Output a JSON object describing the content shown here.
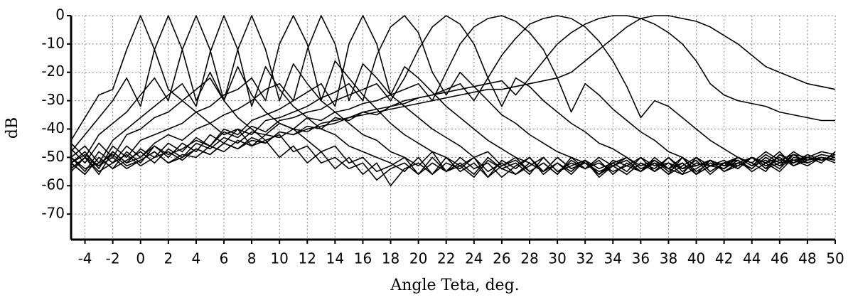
{
  "chart_data": {
    "type": "line",
    "x_label": "Angle Teta, deg.",
    "y_label": "dB",
    "xlim": [
      -5,
      50
    ],
    "ylim": [
      -79,
      0
    ],
    "xticks": [
      -4,
      -2,
      0,
      2,
      4,
      6,
      8,
      10,
      12,
      14,
      16,
      18,
      20,
      22,
      24,
      26,
      28,
      30,
      32,
      34,
      36,
      38,
      40,
      42,
      44,
      46,
      48,
      50
    ],
    "yticks": [
      0,
      -10,
      -20,
      -30,
      -40,
      -50,
      -60,
      -70
    ],
    "grid": true,
    "x": [
      -5,
      -4,
      -3,
      -2,
      -1,
      0,
      1,
      2,
      3,
      4,
      5,
      6,
      7,
      8,
      9,
      10,
      11,
      12,
      13,
      14,
      15,
      16,
      17,
      18,
      19,
      20,
      21,
      22,
      23,
      24,
      25,
      26,
      27,
      28,
      29,
      30,
      31,
      32,
      33,
      34,
      35,
      36,
      37,
      38,
      39,
      40,
      41,
      42,
      43,
      44,
      45,
      46,
      47,
      48,
      49,
      50
    ],
    "series": [
      {
        "color": "#000000",
        "values": [
          -44,
          -36,
          -28,
          -26,
          -12,
          0,
          -12,
          -26,
          -30,
          -34,
          -38,
          -42,
          -40,
          -46,
          -44,
          -50,
          -46,
          -52,
          -48,
          -54,
          -50,
          -56,
          -52,
          -60,
          -54,
          -52,
          -56,
          -50,
          -55,
          -52,
          -57,
          -51,
          -54,
          -50,
          -56,
          -52,
          -55,
          -51,
          -57,
          -53,
          -50,
          -54,
          -52,
          -56,
          -50,
          -55,
          -52,
          -54,
          -50,
          -53,
          -49,
          -52,
          -48,
          -51,
          -49,
          -50
        ]
      },
      {
        "color": "#000000",
        "values": [
          -48,
          -42,
          -36,
          -30,
          -22,
          -32,
          -12,
          0,
          -12,
          -30,
          -20,
          -30,
          -36,
          -40,
          -44,
          -42,
          -48,
          -46,
          -52,
          -50,
          -54,
          -52,
          -58,
          -54,
          -52,
          -56,
          -50,
          -55,
          -53,
          -57,
          -51,
          -54,
          -56,
          -52,
          -55,
          -50,
          -54,
          -52,
          -56,
          -51,
          -53,
          -55,
          -50,
          -54,
          -52,
          -56,
          -51,
          -53,
          -52,
          -50,
          -54,
          -49,
          -51,
          -50,
          -52,
          -48
        ]
      },
      {
        "color": "#000000",
        "values": [
          -45,
          -50,
          -42,
          -38,
          -34,
          -28,
          -22,
          -30,
          -12,
          0,
          -12,
          -30,
          -18,
          -28,
          -34,
          -38,
          -40,
          -44,
          -48,
          -46,
          -52,
          -50,
          -55,
          -53,
          -50,
          -56,
          -52,
          -55,
          -50,
          -54,
          -52,
          -57,
          -53,
          -50,
          -55,
          -52,
          -56,
          -51,
          -54,
          -52,
          -55,
          -50,
          -53,
          -52,
          -56,
          -54,
          -51,
          -53,
          -50,
          -52,
          -55,
          -49,
          -52,
          -50,
          -51,
          -49
        ]
      },
      {
        "color": "#000000",
        "values": [
          -50,
          -46,
          -52,
          -44,
          -40,
          -36,
          -32,
          -28,
          -24,
          -32,
          -13,
          0,
          -12,
          -32,
          -18,
          -26,
          -32,
          -36,
          -40,
          -42,
          -46,
          -48,
          -50,
          -52,
          -55,
          -50,
          -56,
          -52,
          -54,
          -50,
          -57,
          -53,
          -50,
          -55,
          -52,
          -56,
          -51,
          -54,
          -50,
          -53,
          -56,
          -52,
          -54,
          -50,
          -55,
          -52,
          -53,
          -51,
          -54,
          -50,
          -52,
          -48,
          -53,
          -50,
          -51,
          -50
        ]
      },
      {
        "color": "#000000",
        "values": [
          -47,
          -52,
          -45,
          -50,
          -42,
          -40,
          -36,
          -34,
          -30,
          -26,
          -22,
          -30,
          -12,
          0,
          -12,
          -30,
          -17,
          -24,
          -30,
          -34,
          -38,
          -42,
          -44,
          -48,
          -50,
          -53,
          -48,
          -55,
          -52,
          -56,
          -50,
          -54,
          -52,
          -56,
          -50,
          -55,
          -53,
          -51,
          -56,
          -52,
          -50,
          -54,
          -52,
          -56,
          -53,
          -50,
          -55,
          -52,
          -51,
          -54,
          -50,
          -53,
          -49,
          -52,
          -50,
          -51
        ]
      },
      {
        "color": "#000000",
        "values": [
          -52,
          -48,
          -54,
          -46,
          -50,
          -44,
          -42,
          -40,
          -38,
          -34,
          -32,
          -28,
          -26,
          -22,
          -30,
          -10,
          0,
          -10,
          -30,
          -16,
          -22,
          -28,
          -33,
          -38,
          -42,
          -45,
          -48,
          -50,
          -53,
          -50,
          -55,
          -52,
          -56,
          -53,
          -50,
          -55,
          -52,
          -54,
          -51,
          -56,
          -52,
          -55,
          -51,
          -54,
          -56,
          -50,
          -53,
          -52,
          -53,
          -50,
          -52,
          -55,
          -50,
          -51,
          -49,
          -50
        ]
      },
      {
        "color": "#000000",
        "values": [
          -50,
          -55,
          -48,
          -52,
          -46,
          -50,
          -45,
          -42,
          -44,
          -40,
          -38,
          -35,
          -33,
          -30,
          -26,
          -24,
          -30,
          -12,
          0,
          -10,
          -30,
          -17,
          -22,
          -28,
          -32,
          -36,
          -40,
          -43,
          -46,
          -50,
          -48,
          -53,
          -51,
          -55,
          -52,
          -56,
          -50,
          -54,
          -52,
          -55,
          -53,
          -50,
          -55,
          -52,
          -54,
          -51,
          -56,
          -52,
          -50,
          -53,
          -51,
          -54,
          -49,
          -52,
          -50,
          -51
        ]
      },
      {
        "color": "#000000",
        "values": [
          -54,
          -50,
          -56,
          -48,
          -52,
          -47,
          -50,
          -45,
          -48,
          -43,
          -46,
          -40,
          -42,
          -37,
          -35,
          -33,
          -30,
          -27,
          -24,
          -32,
          -10,
          0,
          -10,
          -28,
          -18,
          -22,
          -27,
          -32,
          -36,
          -40,
          -44,
          -47,
          -50,
          -52,
          -55,
          -50,
          -54,
          -52,
          -56,
          -53,
          -51,
          -55,
          -52,
          -54,
          -50,
          -56,
          -53,
          -52,
          -54,
          -50,
          -53,
          -51,
          -52,
          -49,
          -51,
          -50
        ]
      },
      {
        "color": "#000000",
        "values": [
          -52,
          -56,
          -50,
          -54,
          -48,
          -52,
          -46,
          -50,
          -45,
          -48,
          -42,
          -45,
          -40,
          -42,
          -37,
          -36,
          -34,
          -32,
          -29,
          -27,
          -24,
          -30,
          -14,
          -4,
          0,
          -6,
          -20,
          -28,
          -20,
          -25,
          -30,
          -35,
          -38,
          -42,
          -45,
          -48,
          -50,
          -52,
          -55,
          -53,
          -56,
          -52,
          -55,
          -50,
          -54,
          -53,
          -51,
          -55,
          -52,
          -54,
          -50,
          -53,
          -51,
          -52,
          -50,
          -51
        ]
      },
      {
        "color": "#000000",
        "values": [
          -55,
          -50,
          -53,
          -48,
          -52,
          -50,
          -46,
          -49,
          -47,
          -44,
          -46,
          -41,
          -43,
          -39,
          -41,
          -37,
          -36,
          -34,
          -33,
          -30,
          -28,
          -26,
          -24,
          -30,
          -22,
          -12,
          -4,
          0,
          -3,
          -10,
          -22,
          -32,
          -22,
          -25,
          -30,
          -34,
          -38,
          -41,
          -45,
          -47,
          -50,
          -53,
          -51,
          -55,
          -52,
          -56,
          -53,
          -54,
          -51,
          -55,
          -52,
          -50,
          -53,
          -51,
          -50,
          -52
        ]
      },
      {
        "color": "#000000",
        "values": [
          -52,
          -56,
          -50,
          -54,
          -51,
          -48,
          -52,
          -47,
          -50,
          -45,
          -47,
          -43,
          -45,
          -41,
          -42,
          -38,
          -40,
          -36,
          -37,
          -34,
          -33,
          -31,
          -30,
          -28,
          -26,
          -24,
          -30,
          -20,
          -10,
          -4,
          -1,
          0,
          -2,
          -6,
          -12,
          -22,
          -34,
          -24,
          -28,
          -33,
          -37,
          -41,
          -44,
          -48,
          -50,
          -53,
          -51,
          -55,
          -53,
          -50,
          -54,
          -52,
          -51,
          -53,
          -50,
          -51
        ]
      },
      {
        "color": "#000000",
        "values": [
          -54,
          -50,
          -55,
          -52,
          -49,
          -53,
          -50,
          -48,
          -51,
          -47,
          -49,
          -45,
          -47,
          -43,
          -45,
          -41,
          -42,
          -39,
          -40,
          -36,
          -37,
          -34,
          -35,
          -32,
          -31,
          -29,
          -28,
          -26,
          -24,
          -30,
          -22,
          -14,
          -8,
          -3,
          -1,
          0,
          -1,
          -4,
          -9,
          -16,
          -25,
          -36,
          -30,
          -32,
          -36,
          -40,
          -44,
          -47,
          -50,
          -52,
          -48,
          -51,
          -49,
          -50,
          -48,
          -49
        ]
      },
      {
        "color": "#000000",
        "values": [
          -50,
          -54,
          -52,
          -49,
          -53,
          -51,
          -48,
          -52,
          -49,
          -50,
          -46,
          -48,
          -44,
          -46,
          -42,
          -43,
          -40,
          -41,
          -38,
          -37,
          -36,
          -34,
          -33,
          -32,
          -30,
          -29,
          -28,
          -27,
          -26,
          -25,
          -24,
          -23,
          -28,
          -22,
          -16,
          -10,
          -6,
          -3,
          -1,
          0,
          0,
          -1,
          -3,
          -6,
          -10,
          -16,
          -24,
          -28,
          -30,
          -31,
          -32,
          -34,
          -35,
          -36,
          -37,
          -37
        ]
      },
      {
        "color": "#000000",
        "values": [
          -52,
          -49,
          -53,
          -50,
          -54,
          -51,
          -48,
          -52,
          -50,
          -47,
          -49,
          -45,
          -47,
          -44,
          -45,
          -41,
          -42,
          -40,
          -39,
          -38,
          -36,
          -35,
          -34,
          -33,
          -32,
          -31,
          -30,
          -29,
          -28,
          -27,
          -26,
          -26,
          -25,
          -24,
          -23,
          -22,
          -20,
          -16,
          -12,
          -8,
          -4,
          -1,
          0,
          0,
          -1,
          -2,
          -4,
          -7,
          -10,
          -14,
          -18,
          -20,
          -22,
          -24,
          -25,
          -26
        ]
      }
    ]
  }
}
